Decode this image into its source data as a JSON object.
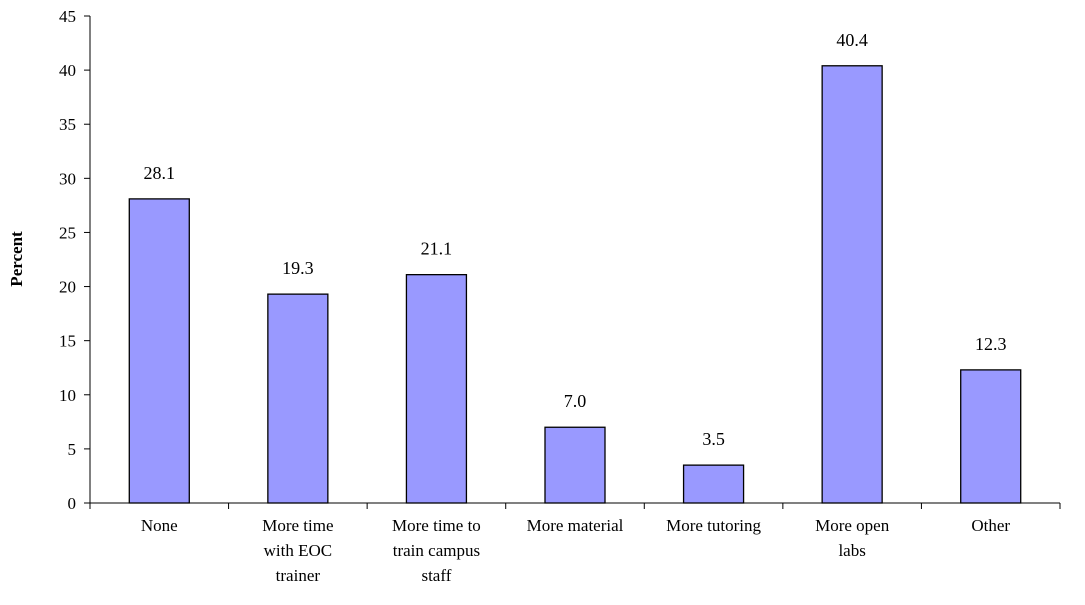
{
  "chart_data": {
    "type": "bar",
    "categories": [
      [
        "None"
      ],
      [
        "More time",
        "with EOC",
        "trainer"
      ],
      [
        "More time to",
        "train campus",
        "staff"
      ],
      [
        "More material"
      ],
      [
        "More tutoring"
      ],
      [
        "More open",
        "labs"
      ],
      [
        "Other"
      ]
    ],
    "values": [
      28.1,
      19.3,
      21.1,
      7.0,
      3.5,
      40.4,
      12.3
    ],
    "value_labels": [
      "28.1",
      "19.3",
      "21.1",
      "7.0",
      "3.5",
      "40.4",
      "12.3"
    ],
    "ylabel": "Percent",
    "ylim": [
      0,
      45
    ],
    "yticks": [
      0,
      5,
      10,
      15,
      20,
      25,
      30,
      35,
      40,
      45
    ],
    "grid": false,
    "bar_color": "#9999ff"
  }
}
